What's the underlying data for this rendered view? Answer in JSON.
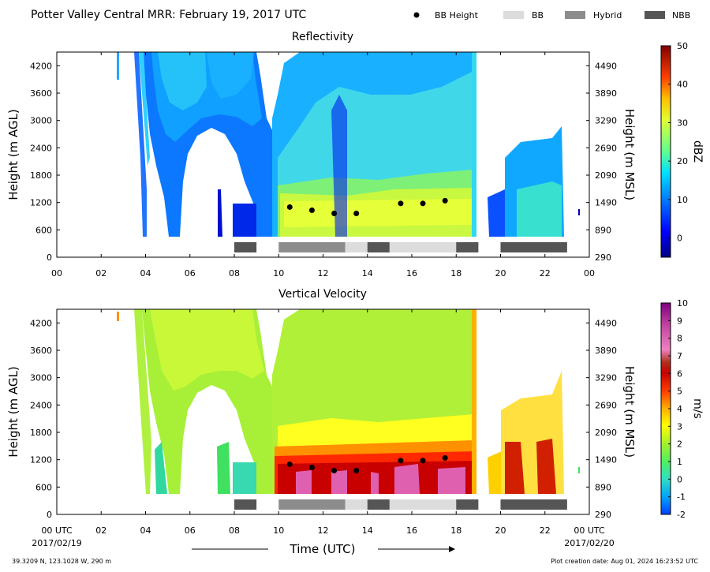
{
  "figure": {
    "title": "Potter Valley Central MRR:  February 19, 2017 UTC",
    "legend": [
      {
        "label": "BB Height",
        "kind": "dot",
        "color": "#000000"
      },
      {
        "label": "BB",
        "kind": "bar",
        "color": "#dcdcdc"
      },
      {
        "label": "Hybrid",
        "kind": "bar",
        "color": "#8c8c8c"
      },
      {
        "label": "NBB",
        "kind": "bar",
        "color": "#555555"
      }
    ],
    "xlabel": "Time (UTC)",
    "x_start_label": "00 UTC",
    "x_start_date": "2017/02/19",
    "x_end_label": "00 UTC",
    "x_end_date": "2017/02/20",
    "footer_left": "39.3209 N, 123.1028 W, 290 m",
    "footer_right": "Plot creation date: Aug 01, 2024 16:23:52 UTC"
  },
  "chart_data": [
    {
      "type": "heatmap",
      "title": "Reflectivity",
      "ylabel": "Height (m AGL)",
      "ylabel_right": "Height (m MSL)",
      "xlim": [
        0,
        24
      ],
      "ylim": [
        0,
        4500
      ],
      "x_ticks": [
        "00",
        "02",
        "04",
        "06",
        "08",
        "10",
        "12",
        "14",
        "16",
        "18",
        "20",
        "22",
        "00"
      ],
      "y_ticks": [
        0,
        600,
        1200,
        1800,
        2400,
        3000,
        3600,
        4200
      ],
      "y_ticks_right": [
        290,
        890,
        1490,
        2090,
        2690,
        3290,
        3890,
        4490
      ],
      "colorbar": {
        "label": "dBZ",
        "min": -5,
        "max": 50,
        "ticks": [
          0,
          10,
          20,
          30,
          40,
          50
        ]
      },
      "bb_height": [
        {
          "x": 10.5,
          "y": 1100
        },
        {
          "x": 11.5,
          "y": 1030
        },
        {
          "x": 12.5,
          "y": 960
        },
        {
          "x": 13.5,
          "y": 960
        },
        {
          "x": 15.5,
          "y": 1180
        },
        {
          "x": 16.5,
          "y": 1180
        },
        {
          "x": 17.5,
          "y": 1240
        }
      ],
      "bb_classification": [
        {
          "start": 8,
          "end": 9,
          "class": "NBB"
        },
        {
          "start": 10,
          "end": 13,
          "class": "Hybrid"
        },
        {
          "start": 13,
          "end": 14,
          "class": "BB"
        },
        {
          "start": 14,
          "end": 15,
          "class": "NBB"
        },
        {
          "start": 15,
          "end": 18,
          "class": "BB"
        },
        {
          "start": 18,
          "end": 19,
          "class": "NBB"
        },
        {
          "start": 20,
          "end": 23,
          "class": "NBB"
        }
      ]
    },
    {
      "type": "heatmap",
      "title": "Vertical Velocity",
      "ylabel": "Height (m AGL)",
      "ylabel_right": "Height (m MSL)",
      "xlim": [
        0,
        24
      ],
      "ylim": [
        0,
        4500
      ],
      "x_ticks": [
        "00",
        "02",
        "04",
        "06",
        "08",
        "10",
        "12",
        "14",
        "16",
        "18",
        "20",
        "22",
        "00"
      ],
      "y_ticks": [
        0,
        600,
        1200,
        1800,
        2400,
        3000,
        3600,
        4200
      ],
      "y_ticks_right": [
        290,
        890,
        1490,
        2090,
        2690,
        3290,
        3890,
        4490
      ],
      "colorbar": {
        "label": "m/s",
        "min": -2,
        "max": 10,
        "ticks": [
          -2,
          -1,
          0,
          1,
          2,
          3,
          4,
          5,
          6,
          7,
          8,
          9,
          10
        ]
      },
      "bb_height": [
        {
          "x": 10.5,
          "y": 1100
        },
        {
          "x": 11.5,
          "y": 1030
        },
        {
          "x": 12.5,
          "y": 960
        },
        {
          "x": 13.5,
          "y": 960
        },
        {
          "x": 15.5,
          "y": 1180
        },
        {
          "x": 16.5,
          "y": 1180
        },
        {
          "x": 17.5,
          "y": 1240
        }
      ],
      "bb_classification": [
        {
          "start": 8,
          "end": 9,
          "class": "NBB"
        },
        {
          "start": 10,
          "end": 13,
          "class": "Hybrid"
        },
        {
          "start": 13,
          "end": 14,
          "class": "BB"
        },
        {
          "start": 14,
          "end": 15,
          "class": "NBB"
        },
        {
          "start": 15,
          "end": 18,
          "class": "BB"
        },
        {
          "start": 18,
          "end": 19,
          "class": "NBB"
        },
        {
          "start": 20,
          "end": 23,
          "class": "NBB"
        }
      ]
    }
  ]
}
